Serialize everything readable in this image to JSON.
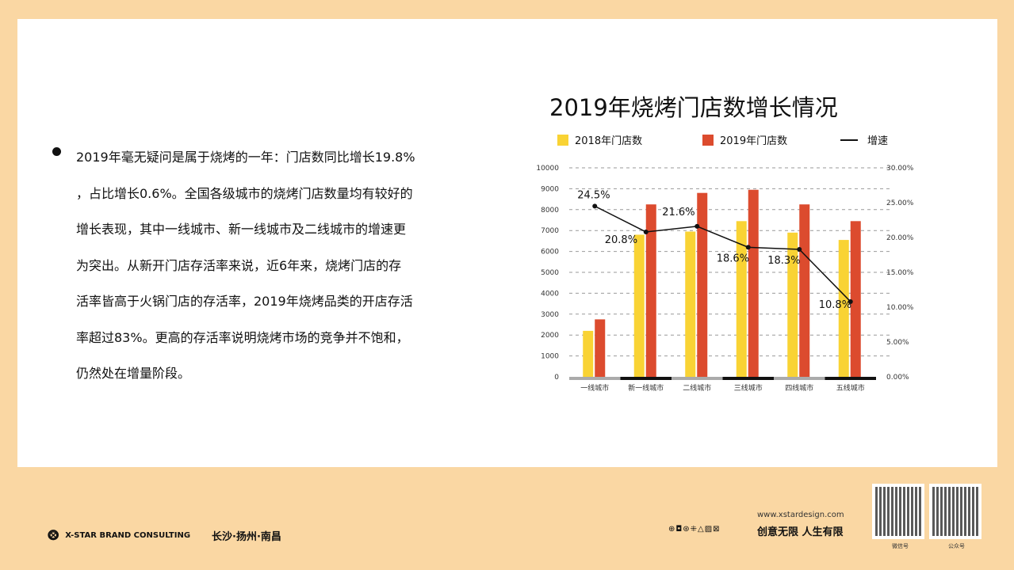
{
  "body": {
    "lines": [
      "2019年毫无疑问是属于烧烤的一年：门店数同比增长19.8%",
      "，占比增长0.6%。全国各级城市的烧烤门店数量均有较好的",
      "增长表现，其中一线城市、新一线城市及二线城市的增速更",
      "为突出。从新开门店存活率来说，近6年来，烧烤门店的存",
      "活率皆高于火锅门店的存活率，2019年烧烤品类的开店存活",
      "率超过83%。更高的存活率说明烧烤市场的竞争并不饱和，",
      "仍然处在增量阶段。"
    ]
  },
  "chart_data": {
    "type": "bar",
    "title": "2019年烧烤门店数增长情况",
    "categories": [
      "一线城市",
      "新一线城市",
      "二线城市",
      "三线城市",
      "四线城市",
      "五线城市"
    ],
    "series": [
      {
        "name": "2018年门店数",
        "type": "bar",
        "axis": "left",
        "color": "#f9d334",
        "values": [
          2200,
          6800,
          6950,
          7450,
          6900,
          6550
        ]
      },
      {
        "name": "2019年门店数",
        "type": "bar",
        "axis": "left",
        "color": "#dc4b2e",
        "values": [
          2750,
          8250,
          8800,
          8950,
          8250,
          7450
        ]
      },
      {
        "name": "增速",
        "type": "line",
        "axis": "right",
        "color": "#111111",
        "values": [
          24.5,
          20.8,
          21.6,
          18.6,
          18.3,
          10.8
        ],
        "labels": [
          "24.5%",
          "20.8%",
          "21.6%",
          "18.6%",
          "18.3%",
          "10.8%"
        ]
      }
    ],
    "y_left": {
      "ylim": [
        0,
        10000
      ],
      "ticks": [
        "0",
        "1000",
        "2000",
        "3000",
        "4000",
        "5000",
        "6000",
        "7000",
        "8000",
        "9000",
        "10000"
      ]
    },
    "y_right": {
      "ylim": [
        0,
        30
      ],
      "ticks": [
        "0.00%",
        "5.00%",
        "10.00%",
        "15.00%",
        "20.00%",
        "25.00%",
        "30.00%"
      ]
    },
    "grid": true,
    "legend": "top"
  },
  "footer": {
    "brand": "X-STAR BRAND CONSULTING",
    "cities": "长沙·扬州·南昌",
    "url": "www.xstardesign.com",
    "slogan": "创意无限  人生有限",
    "qr1": "微信号",
    "qr2": "公众号",
    "icons": "⊕◘⊛⁜△▨⊠"
  }
}
